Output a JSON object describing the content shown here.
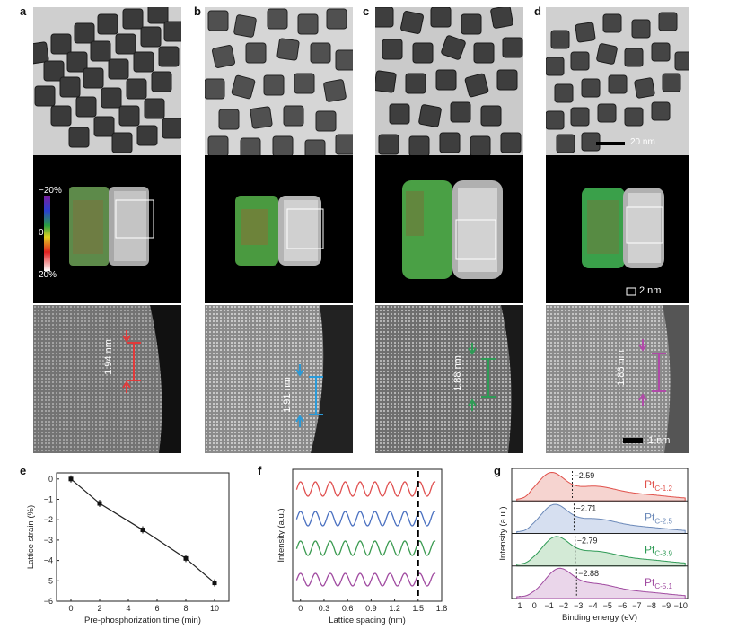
{
  "panel_letters": [
    "a",
    "b",
    "c",
    "d",
    "e",
    "f",
    "g"
  ],
  "scale_bars": {
    "tem": "20 nm",
    "stem": "2 nm",
    "hr": "1 nm"
  },
  "colorbar_ticks": [
    "−20%",
    "0",
    "20%"
  ],
  "spacing_labels": [
    {
      "text": "1.94 nm",
      "color": "#e03a3a"
    },
    {
      "text": "1.91 nm",
      "color": "#2a9ad8"
    },
    {
      "text": "1.88 nm",
      "color": "#2e9a55"
    },
    {
      "text": "1.86 nm",
      "color": "#b04aa8"
    }
  ],
  "chart_data": [
    {
      "panel": "e",
      "type": "line",
      "xlabel": "Pre-phosphorization time (min)",
      "ylabel": "Lattice strain (%)",
      "x": [
        0,
        2,
        5,
        8,
        10
      ],
      "y": [
        0,
        -1.2,
        -2.5,
        -3.9,
        -5.1
      ],
      "xlim": [
        -1,
        11
      ],
      "ylim": [
        -6,
        0.3
      ],
      "xticks": [
        0,
        2,
        4,
        6,
        8,
        10
      ],
      "yticks": [
        0,
        -1,
        -2,
        -3,
        -4,
        -5,
        -6
      ]
    },
    {
      "panel": "f",
      "type": "line",
      "xlabel": "Lattice spacing (nm)",
      "ylabel": "Intensity (a.u.)",
      "xlim": [
        -0.1,
        1.8
      ],
      "xticks": [
        "0",
        "0.3",
        "0.6",
        "0.9",
        "1.2",
        "1.5",
        "1.8"
      ],
      "marker_line": 1.5,
      "series_colors": [
        "#e05050",
        "#4a70c0",
        "#3a9a50",
        "#a04aa0"
      ]
    },
    {
      "panel": "g",
      "type": "area",
      "xlabel": "Binding energy (eV)",
      "ylabel": "Intensity (a.u.)",
      "xticks": [
        "1",
        "0",
        "−1",
        "−2",
        "−3",
        "−4",
        "−5",
        "−6",
        "−7",
        "−8",
        "−9",
        "−10"
      ],
      "series": [
        {
          "label": "Pt",
          "sub": "C-1.2",
          "center": "−2.59",
          "color": "#e0504a",
          "fill": "#f6d4d0"
        },
        {
          "label": "Pt",
          "sub": "C-2.5",
          "center": "−2.71",
          "color": "#6a88b8",
          "fill": "#d6dff0"
        },
        {
          "label": "Pt",
          "sub": "C-3.9",
          "center": "−2.79",
          "color": "#2e9a55",
          "fill": "#d3ead6"
        },
        {
          "label": "Pt",
          "sub": "C-5.1",
          "center": "−2.88",
          "color": "#a04aa0",
          "fill": "#ead6ea"
        }
      ]
    }
  ]
}
